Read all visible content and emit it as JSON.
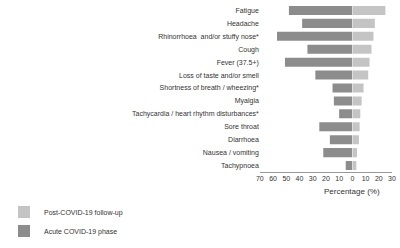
{
  "chart_data": [
    {
      "type": "bar",
      "orientation": "horizontal",
      "xlabel": "Percentage (%)",
      "categories": [
        "Fatigue",
        "Headache",
        "Rhinorrhoea  and/or stuffy nose*",
        "Cough",
        "Fever (37.5+)",
        "Loss of taste and/or smell",
        "Shortness of breath / wheezing*",
        "Myalgia",
        "Tachycardia / heart rhythm disturbances*",
        "Sore throat",
        "Diarrhoea",
        "Nausea / vomiting",
        "Tachypnoea"
      ],
      "series": [
        {
          "name": "Acute COVID-19 phase",
          "color": "#8c8c8c",
          "values": [
            48,
            38,
            57,
            34,
            51,
            28,
            15,
            14,
            10,
            25,
            17,
            22,
            5
          ]
        }
      ],
      "xlim": [
        70,
        0
      ],
      "xticks": [
        70,
        60,
        50,
        40,
        30,
        20,
        10,
        0
      ],
      "grid": false,
      "legend": "bottom-left"
    },
    {
      "type": "bar",
      "orientation": "horizontal",
      "tick_labels": "x",
      "categories": [
        "Fatigue",
        "Headache",
        "Rhinorrhoea  and/or stuffy nose*",
        "Cough",
        "Fever (37.5+)",
        "Loss of taste and/or smell",
        "Shortness of breath / wheezing*",
        "Myalgia",
        "Tachycardia / heart rhythm disturbances*",
        "Sore throat",
        "Diarrhoea",
        "Nausea / vomiting",
        "Tachypnoea"
      ],
      "series": [
        {
          "name": "Post-COVID-19 follow-up",
          "color": "#c4c4c4",
          "values": [
            25,
            17,
            16,
            14.5,
            13,
            12,
            8.5,
            7,
            6,
            5.5,
            5,
            3.5,
            3
          ]
        }
      ],
      "xlim": [
        0,
        30
      ],
      "xticks": [
        10,
        20,
        30
      ],
      "grid": false,
      "legend": "bottom-left"
    }
  ]
}
